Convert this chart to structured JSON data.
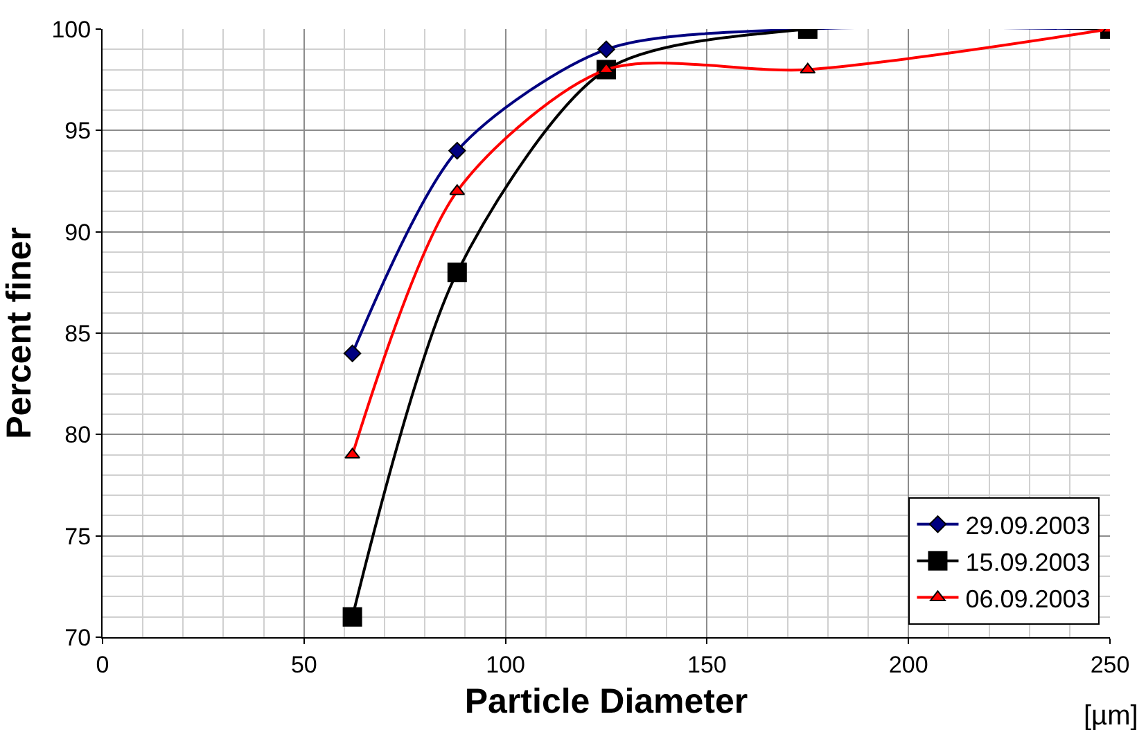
{
  "chart_data": {
    "type": "line",
    "xlabel": "Particle Diameter",
    "ylabel": "Percent finer",
    "annotations": [
      "[µm]"
    ],
    "x": [
      62,
      88,
      125,
      175,
      250
    ],
    "series": [
      {
        "name": "29.09.2003",
        "color": "#000080",
        "marker": "diamond",
        "values": [
          84,
          94,
          99,
          100,
          100
        ]
      },
      {
        "name": "15.09.2003",
        "color": "#000000",
        "marker": "square",
        "values": [
          71,
          88,
          98,
          100,
          100
        ]
      },
      {
        "name": "06.09.2003",
        "color": "#ff0000",
        "marker": "triangle",
        "values": [
          79,
          92,
          98,
          98,
          100
        ]
      }
    ],
    "xlim": [
      0,
      250
    ],
    "xticks": [
      0,
      50,
      100,
      150,
      200,
      250
    ],
    "ylim": [
      70,
      100
    ],
    "yticks": [
      70,
      75,
      80,
      85,
      90,
      95,
      100
    ],
    "grid": true,
    "legend": "bottom right"
  }
}
